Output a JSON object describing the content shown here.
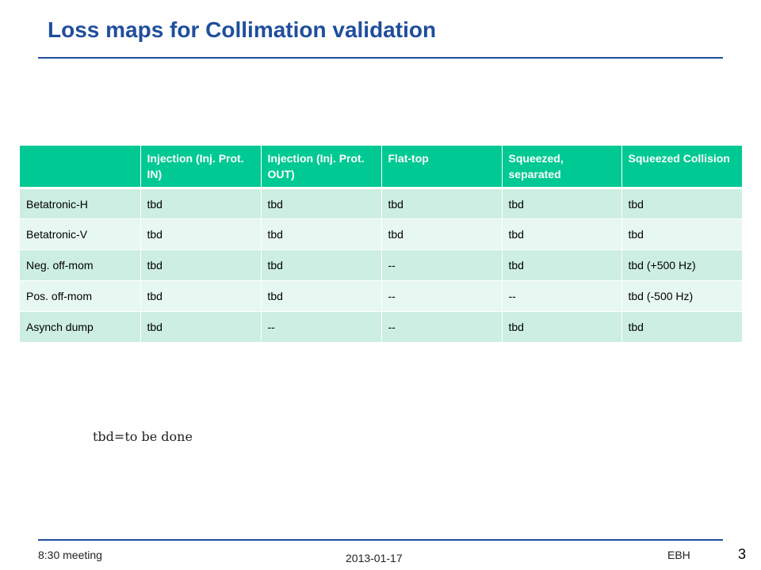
{
  "slide": {
    "title": "Loss maps for Collimation validation",
    "note": "tbd=to be done"
  },
  "table": {
    "headers": [
      "",
      "Injection (Inj. Prot. IN)",
      "Injection (Inj. Prot. OUT)",
      "Flat-top",
      "Squeezed, separated",
      "Squeezed Collision"
    ],
    "rows": [
      [
        "Betatronic-H",
        "tbd",
        "tbd",
        "tbd",
        "tbd",
        "tbd"
      ],
      [
        "Betatronic-V",
        "tbd",
        "tbd",
        "tbd",
        "tbd",
        "tbd"
      ],
      [
        "Neg. off-mom",
        "tbd",
        "tbd",
        "--",
        "tbd",
        "tbd (+500 Hz)"
      ],
      [
        "Pos. off-mom",
        "tbd",
        "tbd",
        "--",
        "--",
        "tbd (-500 Hz)"
      ],
      [
        "Asynch dump",
        "tbd",
        "--",
        "--",
        "tbd",
        "tbd"
      ]
    ],
    "header_color": "#00c993",
    "row_color_odd": "#cdeee2",
    "row_color_even": "#e7f7f1"
  },
  "footer": {
    "left": "8:30  meeting",
    "center": "2013-01-17",
    "right": "EBH",
    "page_number": "3"
  },
  "theme": {
    "title_color": "#1f4e9c",
    "rule_color": "#1f4e9c"
  }
}
